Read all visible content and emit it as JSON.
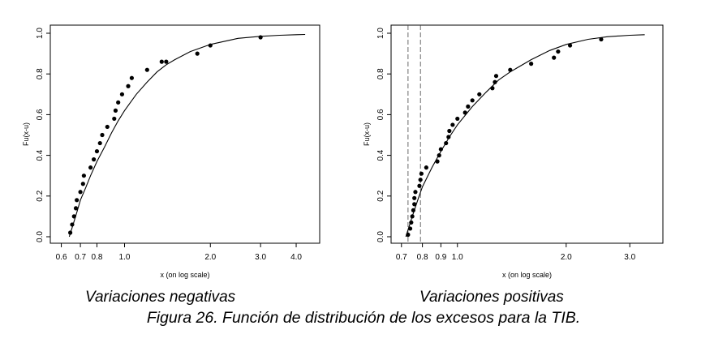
{
  "chart_data": [
    {
      "type": "scatter",
      "title": "Variaciones negativas",
      "xlabel": "x (on log scale)",
      "ylabel": "Fu(x-u)",
      "xscale": "log",
      "xlim": [
        0.59,
        4.5
      ],
      "ylim": [
        0.0,
        1.0
      ],
      "x_ticks": [
        0.6,
        0.7,
        0.8,
        1.0,
        2.0,
        3.0,
        4.0
      ],
      "x_tick_labels": [
        "0.6",
        "0.7",
        "0.8",
        "1.0",
        "2.0",
        "3.0",
        "4.0"
      ],
      "y_ticks": [
        0.0,
        0.2,
        0.4,
        0.6,
        0.8,
        1.0
      ],
      "y_tick_labels": [
        "0.0",
        "0.2",
        "0.4",
        "0.6",
        "0.8",
        "1.0"
      ],
      "threshold_lines": [],
      "fitted_curve": {
        "x": [
          0.64,
          0.66,
          0.68,
          0.7,
          0.73,
          0.76,
          0.8,
          0.85,
          0.9,
          0.95,
          1.0,
          1.1,
          1.2,
          1.3,
          1.4,
          1.5,
          1.7,
          2.0,
          2.5,
          3.0,
          3.5,
          4.0,
          4.3
        ],
        "y": [
          0.0,
          0.06,
          0.12,
          0.18,
          0.24,
          0.3,
          0.37,
          0.44,
          0.51,
          0.57,
          0.62,
          0.7,
          0.76,
          0.81,
          0.845,
          0.87,
          0.91,
          0.945,
          0.975,
          0.985,
          0.99,
          0.993,
          0.994
        ]
      },
      "points": {
        "x": [
          0.645,
          0.655,
          0.665,
          0.675,
          0.68,
          0.7,
          0.715,
          0.72,
          0.76,
          0.78,
          0.8,
          0.82,
          0.835,
          0.87,
          0.92,
          0.93,
          0.95,
          0.98,
          1.03,
          1.06,
          1.2,
          1.35,
          1.4,
          1.8,
          2.0,
          3.0
        ],
        "y": [
          0.02,
          0.06,
          0.1,
          0.14,
          0.18,
          0.22,
          0.26,
          0.3,
          0.34,
          0.38,
          0.42,
          0.46,
          0.5,
          0.54,
          0.58,
          0.62,
          0.66,
          0.7,
          0.74,
          0.78,
          0.82,
          0.86,
          0.86,
          0.9,
          0.94,
          0.98
        ]
      }
    },
    {
      "type": "scatter",
      "title": "Variaciones positivas",
      "xlabel": "x (on log scale)",
      "ylabel": "Fu(x-u)",
      "xscale": "log",
      "xlim": [
        0.69,
        3.5
      ],
      "ylim": [
        0.0,
        1.0
      ],
      "x_ticks": [
        0.7,
        0.8,
        0.9,
        1.0,
        2.0,
        3.0
      ],
      "x_tick_labels": [
        "0.7",
        "0.8",
        "0.9",
        "1.0",
        "2.0",
        "3.0"
      ],
      "y_ticks": [
        0.0,
        0.2,
        0.4,
        0.6,
        0.8,
        1.0
      ],
      "y_tick_labels": [
        "0.0",
        "0.2",
        "0.4",
        "0.6",
        "0.8",
        "1.0"
      ],
      "threshold_lines": [
        0.73,
        0.79
      ],
      "fitted_curve": {
        "x": [
          0.72,
          0.75,
          0.78,
          0.8,
          0.85,
          0.9,
          0.95,
          1.0,
          1.1,
          1.2,
          1.3,
          1.4,
          1.6,
          1.8,
          2.0,
          2.3,
          2.6,
          3.0,
          3.3
        ],
        "y": [
          0.0,
          0.1,
          0.19,
          0.245,
          0.34,
          0.42,
          0.49,
          0.55,
          0.64,
          0.71,
          0.77,
          0.81,
          0.87,
          0.915,
          0.945,
          0.97,
          0.983,
          0.99,
          0.993
        ]
      },
      "points": {
        "x": [
          0.73,
          0.74,
          0.745,
          0.75,
          0.755,
          0.76,
          0.76,
          0.765,
          0.785,
          0.79,
          0.795,
          0.82,
          0.88,
          0.89,
          0.9,
          0.93,
          0.945,
          0.95,
          0.97,
          1.0,
          1.05,
          1.07,
          1.1,
          1.15,
          1.25,
          1.27,
          1.28,
          1.4,
          1.6,
          1.85,
          1.9,
          2.05,
          2.5
        ],
        "y": [
          0.01,
          0.04,
          0.07,
          0.1,
          0.13,
          0.16,
          0.19,
          0.22,
          0.25,
          0.28,
          0.31,
          0.34,
          0.37,
          0.4,
          0.43,
          0.46,
          0.49,
          0.52,
          0.55,
          0.58,
          0.61,
          0.64,
          0.67,
          0.7,
          0.73,
          0.76,
          0.79,
          0.82,
          0.85,
          0.88,
          0.91,
          0.94,
          0.97
        ]
      }
    }
  ],
  "panel_titles": [
    "Variaciones negativas",
    "Variaciones positivas"
  ],
  "caption": "Figura 26. Función de distribución de los excesos para la TIB."
}
